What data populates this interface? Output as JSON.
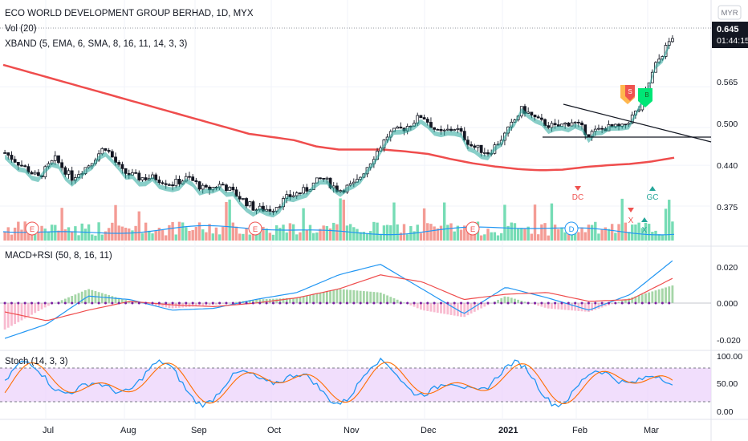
{
  "header": {
    "title": "ECO WORLD DEVELOPMENT GROUP BERHAD, 1D, MYX",
    "vol_label": "Vol (20)",
    "xband_label": "XBAND (5, EMA, 6, SMA, 8, 16, 11, 14, 3, 3)",
    "currency": "MYR"
  },
  "price_axis": {
    "ticks": [
      "0.565",
      "0.500",
      "0.440",
      "0.375"
    ],
    "last_price": "0.645",
    "countdown": "01:44:15"
  },
  "macd_panel": {
    "label": "MACD+RSI (50, 8, 16, 11)",
    "ticks": [
      "0.020",
      "0.000",
      "-0.020"
    ]
  },
  "stoch_panel": {
    "label": "Stoch (14, 3, 3)",
    "ticks": [
      "100.00",
      "50.00",
      "0.00"
    ]
  },
  "time_axis": {
    "labels": [
      "Jul",
      "Aug",
      "Sep",
      "Oct",
      "Nov",
      "Dec",
      "2021",
      "Feb",
      "Mar"
    ]
  },
  "events": {
    "earnings_marker": "E",
    "dividend_marker": "D",
    "signal_dc": "DC",
    "signal_gc": "GC",
    "signal_x": "X",
    "badge_s": "S",
    "badge_b": "B"
  },
  "colors": {
    "up": "#26a69a",
    "down": "#ef5350",
    "vol_up": "#5ed6a8",
    "vol_down": "#f28b82",
    "sma_red": "#ef4d4d",
    "macd_blue": "#2196f3",
    "stoch_fill": "#ecd3fb"
  },
  "chart_data": {
    "type": "candlestick",
    "price_range": [
      0.32,
      0.665
    ],
    "months": [
      "Jul",
      "Aug",
      "Sep",
      "Oct",
      "Nov",
      "Dec",
      "2021",
      "Feb",
      "Mar"
    ],
    "close_path": [
      0.46,
      0.44,
      0.42,
      0.45,
      0.42,
      0.44,
      0.47,
      0.43,
      0.42,
      0.42,
      0.41,
      0.42,
      0.4,
      0.41,
      0.39,
      0.37,
      0.37,
      0.39,
      0.4,
      0.42,
      0.4,
      0.41,
      0.45,
      0.49,
      0.5,
      0.52,
      0.49,
      0.5,
      0.47,
      0.46,
      0.49,
      0.53,
      0.51,
      0.5,
      0.51,
      0.49,
      0.5,
      0.5,
      0.53,
      0.6,
      0.645
    ],
    "sma_path": [
      0.6,
      0.59,
      0.58,
      0.57,
      0.56,
      0.55,
      0.54,
      0.53,
      0.52,
      0.51,
      0.5,
      0.49,
      0.485,
      0.48,
      0.47,
      0.465,
      0.465,
      0.465,
      0.462,
      0.458,
      0.45,
      0.443,
      0.438,
      0.434,
      0.432,
      0.433,
      0.437,
      0.44,
      0.442,
      0.446,
      0.452
    ],
    "stoch_levels": [
      80,
      20
    ],
    "macd_range": [
      -0.025,
      0.028
    ]
  }
}
